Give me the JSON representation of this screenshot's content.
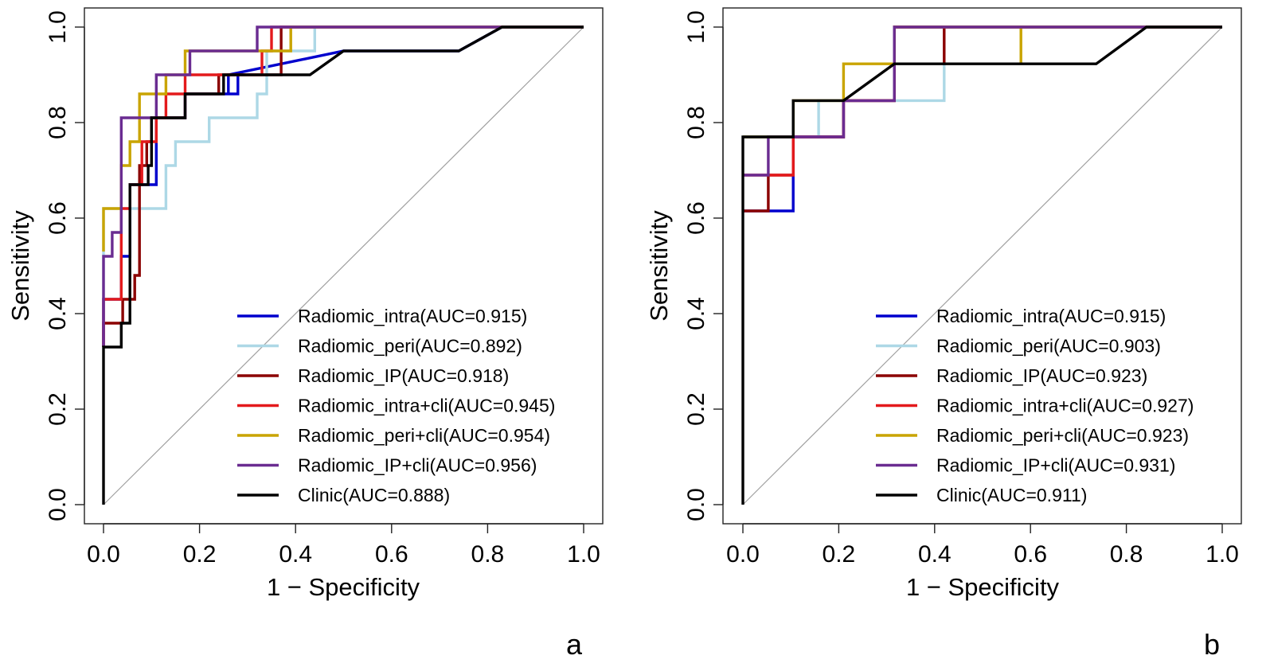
{
  "chart_data": [
    {
      "type": "line",
      "panel_label": "a",
      "xlabel": "1 − Specificity",
      "ylabel": "Sensitivity",
      "xlim": [
        0,
        1
      ],
      "ylim": [
        0,
        1
      ],
      "x_ticks": [
        "0.0",
        "0.2",
        "0.4",
        "0.6",
        "0.8",
        "1.0"
      ],
      "y_ticks": [
        "0.0",
        "0.2",
        "0.4",
        "0.6",
        "0.8",
        "1.0"
      ],
      "legend_position": "bottom-right",
      "series": [
        {
          "name": "Radiomic_intra(AUC=0.915)",
          "color": "#0000CD",
          "points": [
            [
              0,
              0.33
            ],
            [
              0,
              0.43
            ],
            [
              0.037,
              0.43
            ],
            [
              0.037,
              0.52
            ],
            [
              0.055,
              0.52
            ],
            [
              0.055,
              0.67
            ],
            [
              0.11,
              0.67
            ],
            [
              0.11,
              0.76
            ],
            [
              0.11,
              0.81
            ],
            [
              0.17,
              0.81
            ],
            [
              0.17,
              0.86
            ],
            [
              0.26,
              0.86
            ],
            [
              0.26,
              0.9
            ],
            [
              0.28,
              0.9
            ],
            [
              0.28,
              0.86
            ],
            [
              0.26,
              0.86
            ],
            [
              0.26,
              0.9
            ],
            [
              0.5,
              0.95
            ],
            [
              0.74,
              0.95
            ],
            [
              0.83,
              1
            ],
            [
              1,
              1
            ]
          ]
        },
        {
          "name": "Radiomic_peri(AUC=0.892)",
          "color": "#ADD8E6",
          "points": [
            [
              0,
              0.33
            ],
            [
              0,
              0.62
            ],
            [
              0.13,
              0.62
            ],
            [
              0.13,
              0.71
            ],
            [
              0.15,
              0.71
            ],
            [
              0.15,
              0.76
            ],
            [
              0.22,
              0.76
            ],
            [
              0.22,
              0.81
            ],
            [
              0.32,
              0.81
            ],
            [
              0.32,
              0.86
            ],
            [
              0.34,
              0.86
            ],
            [
              0.34,
              0.95
            ],
            [
              0.44,
              0.95
            ],
            [
              0.44,
              1
            ],
            [
              1,
              1
            ]
          ]
        },
        {
          "name": "Radiomic_IP(AUC=0.918)",
          "color": "#8B0000",
          "points": [
            [
              0,
              0.33
            ],
            [
              0,
              0.38
            ],
            [
              0.04,
              0.38
            ],
            [
              0.04,
              0.43
            ],
            [
              0.065,
              0.43
            ],
            [
              0.065,
              0.48
            ],
            [
              0.075,
              0.48
            ],
            [
              0.075,
              0.71
            ],
            [
              0.09,
              0.71
            ],
            [
              0.09,
              0.76
            ],
            [
              0.1,
              0.76
            ],
            [
              0.1,
              0.81
            ],
            [
              0.17,
              0.81
            ],
            [
              0.17,
              0.86
            ],
            [
              0.24,
              0.86
            ],
            [
              0.24,
              0.9
            ],
            [
              0.37,
              0.9
            ],
            [
              0.37,
              0.95
            ],
            [
              0.37,
              1
            ],
            [
              1,
              1
            ]
          ]
        },
        {
          "name": "Radiomic_intra+cli(AUC=0.945)",
          "color": "#E41A1C",
          "points": [
            [
              0,
              0.33
            ],
            [
              0,
              0.43
            ],
            [
              0.037,
              0.43
            ],
            [
              0.037,
              0.62
            ],
            [
              0.055,
              0.62
            ],
            [
              0.055,
              0.67
            ],
            [
              0.08,
              0.67
            ],
            [
              0.08,
              0.76
            ],
            [
              0.11,
              0.76
            ],
            [
              0.11,
              0.81
            ],
            [
              0.13,
              0.81
            ],
            [
              0.13,
              0.86
            ],
            [
              0.17,
              0.86
            ],
            [
              0.17,
              0.9
            ],
            [
              0.33,
              0.9
            ],
            [
              0.33,
              0.95
            ],
            [
              0.35,
              0.95
            ],
            [
              0.35,
              1
            ],
            [
              1,
              1
            ]
          ]
        },
        {
          "name": "Radiomic_peri+cli(AUC=0.954)",
          "color": "#C9A400",
          "points": [
            [
              0,
              0.53
            ],
            [
              0,
              0.62
            ],
            [
              0.037,
              0.62
            ],
            [
              0.037,
              0.71
            ],
            [
              0.055,
              0.71
            ],
            [
              0.055,
              0.76
            ],
            [
              0.075,
              0.76
            ],
            [
              0.075,
              0.86
            ],
            [
              0.13,
              0.86
            ],
            [
              0.13,
              0.9
            ],
            [
              0.17,
              0.9
            ],
            [
              0.17,
              0.95
            ],
            [
              0.39,
              0.95
            ],
            [
              0.39,
              1
            ],
            [
              1,
              1
            ]
          ]
        },
        {
          "name": "Radiomic_IP+cli(AUC=0.956)",
          "color": "#6A2C91",
          "points": [
            [
              0,
              0.33
            ],
            [
              0,
              0.52
            ],
            [
              0.018,
              0.52
            ],
            [
              0.018,
              0.57
            ],
            [
              0.037,
              0.57
            ],
            [
              0.037,
              0.81
            ],
            [
              0.11,
              0.81
            ],
            [
              0.11,
              0.9
            ],
            [
              0.18,
              0.9
            ],
            [
              0.18,
              0.95
            ],
            [
              0.32,
              0.95
            ],
            [
              0.32,
              1
            ],
            [
              1,
              1
            ]
          ]
        },
        {
          "name": "Clinic(AUC=0.888)",
          "color": "#000000",
          "points": [
            [
              0,
              0
            ],
            [
              0,
              0.33
            ],
            [
              0.037,
              0.33
            ],
            [
              0.037,
              0.38
            ],
            [
              0.055,
              0.38
            ],
            [
              0.055,
              0.67
            ],
            [
              0.093,
              0.67
            ],
            [
              0.093,
              0.71
            ],
            [
              0.1,
              0.71
            ],
            [
              0.1,
              0.81
            ],
            [
              0.17,
              0.81
            ],
            [
              0.17,
              0.86
            ],
            [
              0.25,
              0.86
            ],
            [
              0.25,
              0.9
            ],
            [
              0.43,
              0.9
            ],
            [
              0.5,
              0.95
            ],
            [
              0.74,
              0.95
            ],
            [
              0.83,
              1
            ],
            [
              1,
              1
            ]
          ]
        }
      ]
    },
    {
      "type": "line",
      "panel_label": "b",
      "xlabel": "1 − Specificity",
      "ylabel": "Sensitivity",
      "xlim": [
        0,
        1
      ],
      "ylim": [
        0,
        1
      ],
      "x_ticks": [
        "0.0",
        "0.2",
        "0.4",
        "0.6",
        "0.8",
        "1.0"
      ],
      "y_ticks": [
        "0.0",
        "0.2",
        "0.4",
        "0.6",
        "0.8",
        "1.0"
      ],
      "legend_position": "bottom-right",
      "series": [
        {
          "name": "Radiomic_intra(AUC=0.915)",
          "color": "#0000CD",
          "points": [
            [
              0,
              0.615
            ],
            [
              0.105,
              0.615
            ],
            [
              0.105,
              0.69
            ],
            [
              0.105,
              0.77
            ],
            [
              0.21,
              0.77
            ],
            [
              0.21,
              0.846
            ],
            [
              0.316,
              0.846
            ],
            [
              0.316,
              1
            ],
            [
              1,
              1
            ]
          ]
        },
        {
          "name": "Radiomic_peri(AUC=0.903)",
          "color": "#ADD8E6",
          "points": [
            [
              0,
              0.77
            ],
            [
              0.158,
              0.77
            ],
            [
              0.158,
              0.846
            ],
            [
              0.42,
              0.846
            ],
            [
              0.42,
              0.923
            ],
            [
              0.42,
              1
            ],
            [
              1,
              1
            ]
          ]
        },
        {
          "name": "Radiomic_IP(AUC=0.923)",
          "color": "#8B0000",
          "points": [
            [
              0,
              0.615
            ],
            [
              0.053,
              0.615
            ],
            [
              0.053,
              0.69
            ],
            [
              0.105,
              0.69
            ],
            [
              0.105,
              0.77
            ],
            [
              0.21,
              0.77
            ],
            [
              0.21,
              0.846
            ],
            [
              0.316,
              0.846
            ],
            [
              0.316,
              1
            ],
            [
              0.42,
              1
            ],
            [
              0.42,
              0.923
            ],
            [
              0.42,
              1
            ],
            [
              1,
              1
            ]
          ]
        },
        {
          "name": "Radiomic_intra+cli(AUC=0.927)",
          "color": "#E41A1C",
          "points": [
            [
              0,
              0.69
            ],
            [
              0.105,
              0.69
            ],
            [
              0.105,
              0.77
            ],
            [
              0.21,
              0.77
            ],
            [
              0.21,
              0.846
            ],
            [
              0.316,
              0.846
            ],
            [
              0.316,
              1
            ],
            [
              1,
              1
            ]
          ]
        },
        {
          "name": "Radiomic_peri+cli(AUC=0.923)",
          "color": "#C9A400",
          "points": [
            [
              0,
              0.77
            ],
            [
              0.105,
              0.77
            ],
            [
              0.105,
              0.846
            ],
            [
              0.21,
              0.846
            ],
            [
              0.21,
              0.923
            ],
            [
              0.316,
              0.923
            ],
            [
              0.316,
              1
            ],
            [
              0.58,
              1
            ],
            [
              0.58,
              0.923
            ],
            [
              0.58,
              1
            ],
            [
              1,
              1
            ]
          ]
        },
        {
          "name": "Radiomic_IP+cli(AUC=0.931)",
          "color": "#6A2C91",
          "points": [
            [
              0,
              0.69
            ],
            [
              0.053,
              0.69
            ],
            [
              0.053,
              0.77
            ],
            [
              0.21,
              0.77
            ],
            [
              0.21,
              0.846
            ],
            [
              0.316,
              0.846
            ],
            [
              0.316,
              1
            ],
            [
              1,
              1
            ]
          ]
        },
        {
          "name": "Clinic(AUC=0.911)",
          "color": "#000000",
          "points": [
            [
              0,
              0
            ],
            [
              0,
              0.77
            ],
            [
              0.105,
              0.77
            ],
            [
              0.105,
              0.846
            ],
            [
              0.21,
              0.846
            ],
            [
              0.316,
              0.923
            ],
            [
              0.737,
              0.923
            ],
            [
              0.842,
              1
            ],
            [
              1,
              1
            ]
          ]
        }
      ]
    }
  ]
}
